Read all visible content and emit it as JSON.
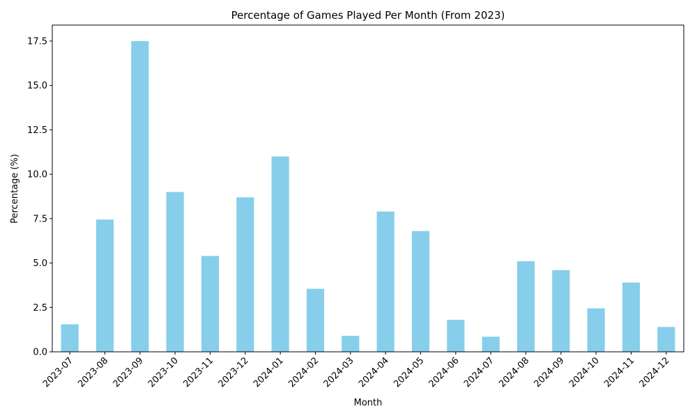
{
  "chart_data": {
    "type": "bar",
    "title": "Percentage of Games Played Per Month (From 2023)",
    "xlabel": "Month",
    "ylabel": "Percentage (%)",
    "ylim": [
      0,
      18.4
    ],
    "yticks": [
      0.0,
      2.5,
      5.0,
      7.5,
      10.0,
      12.5,
      15.0,
      17.5
    ],
    "ytick_labels": [
      "0.0",
      "2.5",
      "5.0",
      "7.5",
      "10.0",
      "12.5",
      "15.0",
      "17.5"
    ],
    "categories": [
      "2023-07",
      "2023-08",
      "2023-09",
      "2023-10",
      "2023-11",
      "2023-12",
      "2024-01",
      "2024-02",
      "2024-03",
      "2024-04",
      "2024-05",
      "2024-06",
      "2024-07",
      "2024-08",
      "2024-09",
      "2024-10",
      "2024-11",
      "2024-12"
    ],
    "values": [
      1.55,
      7.45,
      17.5,
      9.0,
      5.4,
      8.7,
      11.0,
      3.55,
      0.9,
      7.9,
      6.8,
      1.8,
      0.85,
      5.1,
      4.6,
      2.45,
      3.9,
      1.4
    ],
    "bar_color": "#87ceeb",
    "grid": false,
    "legend": "none"
  }
}
